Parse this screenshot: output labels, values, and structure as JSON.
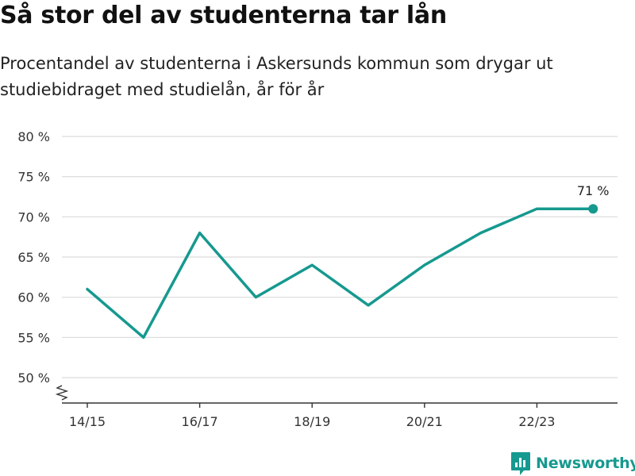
{
  "title": "Så stor del av studenterna tar lån",
  "subtitle": "Procentandel av studenterna i Askersunds kommun som drygar ut studiebidraget med studielån, år för år",
  "brand": {
    "name": "Newsworthy",
    "icon": "newsworthy-logo-icon"
  },
  "colors": {
    "line": "#16998f",
    "grid": "#d9d9d9",
    "axis": "#333333",
    "text": "#333333"
  },
  "chart_data": {
    "type": "line",
    "x": [
      "14/15",
      "15/16",
      "16/17",
      "17/18",
      "18/19",
      "19/20",
      "20/21",
      "21/22",
      "22/23",
      "23/24"
    ],
    "xticks": [
      "14/15",
      "16/17",
      "18/19",
      "20/21",
      "22/23"
    ],
    "values": [
      61,
      55,
      68,
      60,
      64,
      59,
      64,
      68,
      71,
      71
    ],
    "yticks": [
      50,
      55,
      60,
      65,
      70,
      75,
      80
    ],
    "ytick_labels": [
      "50 %",
      "55 %",
      "60 %",
      "65 %",
      "70 %",
      "75 %",
      "80 %"
    ],
    "ylim": [
      50,
      80
    ],
    "axis_break": true,
    "grid": true,
    "end_label": "71 %"
  }
}
